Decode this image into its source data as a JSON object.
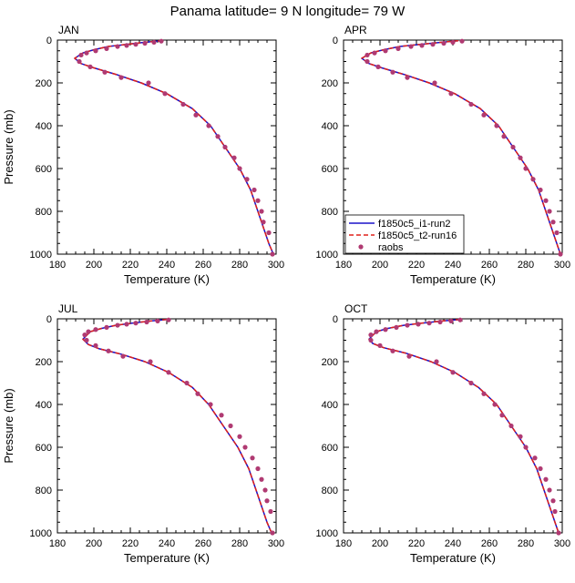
{
  "title": "Panama  latitude= 9 N longitude= 79 W",
  "chart_data": [
    {
      "type": "line",
      "panel_title": "JAN",
      "xlabel": "Temperature (K)",
      "ylabel": "Pressure (mb)",
      "xlim": [
        180,
        300
      ],
      "ylim": [
        1000,
        0
      ],
      "xticks": [
        "180",
        "200",
        "220",
        "240",
        "260",
        "280",
        "300"
      ],
      "yticks": [
        "0",
        "200",
        "400",
        "600",
        "800",
        "1000"
      ],
      "series": [
        {
          "name": "f1850c5_i1-run2",
          "color": "#1c12c8",
          "style": "solid",
          "x": [
            237.5,
            228,
            218,
            208,
            200,
            194,
            189.5,
            193,
            200,
            212,
            226,
            240,
            254,
            264,
            272,
            280,
            286,
            290,
            293,
            296,
            298.5
          ],
          "y": [
            3,
            10,
            20,
            30,
            45,
            60,
            85,
            110,
            130,
            160,
            200,
            250,
            320,
            400,
            500,
            600,
            700,
            800,
            875,
            950,
            1000
          ]
        },
        {
          "name": "f1850c5_t2-run16",
          "color": "#e0201a",
          "style": "dashed",
          "x": [
            237.5,
            228,
            218,
            208,
            200,
            194,
            189.5,
            193,
            200,
            212,
            226,
            240,
            254,
            264,
            272,
            280,
            286,
            290,
            293,
            296,
            298.5
          ],
          "y": [
            3,
            10,
            20,
            30,
            45,
            60,
            85,
            110,
            130,
            160,
            200,
            250,
            320,
            400,
            500,
            600,
            700,
            800,
            875,
            950,
            1000
          ]
        },
        {
          "name": "raobs",
          "color": "#b03a72",
          "style": "markers",
          "x": [
            237,
            233,
            228,
            223,
            218,
            213,
            207,
            201,
            196,
            193,
            192,
            198,
            206,
            215,
            230,
            239,
            249,
            256,
            263,
            268,
            272,
            277,
            280,
            284,
            288,
            290,
            292,
            293,
            296,
            298
          ],
          "y": [
            5,
            10,
            15,
            20,
            25,
            30,
            40,
            50,
            60,
            70,
            100,
            125,
            150,
            175,
            200,
            250,
            300,
            350,
            400,
            450,
            500,
            550,
            600,
            650,
            700,
            750,
            800,
            850,
            900,
            1000
          ]
        }
      ]
    },
    {
      "type": "line",
      "panel_title": "APR",
      "xlabel": "Temperature (K)",
      "ylabel": "",
      "xlim": [
        180,
        300
      ],
      "ylim": [
        1000,
        0
      ],
      "xticks": [
        "180",
        "200",
        "220",
        "240",
        "260",
        "280",
        "300"
      ],
      "yticks": [
        "0",
        "200",
        "400",
        "600",
        "800",
        "1000"
      ],
      "series": [
        {
          "name": "f1850c5_i1-run2",
          "color": "#1c12c8",
          "style": "solid",
          "x": [
            243,
            234,
            222,
            211,
            202,
            195,
            190,
            194,
            201,
            213,
            227,
            241,
            255,
            265,
            273,
            281,
            287,
            291,
            294,
            297,
            299
          ],
          "y": [
            3,
            10,
            20,
            30,
            45,
            60,
            85,
            110,
            130,
            160,
            200,
            250,
            320,
            400,
            500,
            600,
            700,
            800,
            875,
            950,
            1000
          ]
        },
        {
          "name": "f1850c5_t2-run16",
          "color": "#e0201a",
          "style": "dashed",
          "x": [
            243,
            234,
            222,
            211,
            202,
            195,
            190,
            194,
            201,
            213,
            227,
            241,
            255,
            265,
            273,
            281,
            287,
            291,
            294,
            297,
            299
          ],
          "y": [
            3,
            10,
            20,
            30,
            45,
            60,
            85,
            110,
            130,
            160,
            200,
            250,
            320,
            400,
            500,
            600,
            700,
            800,
            875,
            950,
            1000
          ]
        },
        {
          "name": "raobs",
          "color": "#b03a72",
          "style": "markers",
          "x": [
            245,
            240,
            235,
            229,
            223,
            217,
            210,
            203,
            197,
            193,
            193,
            199,
            207,
            215,
            230,
            239,
            250,
            257,
            264,
            268,
            273,
            277,
            280,
            284,
            288,
            291,
            293,
            295,
            297,
            299
          ],
          "y": [
            5,
            10,
            15,
            20,
            25,
            30,
            40,
            50,
            60,
            70,
            100,
            125,
            150,
            175,
            200,
            250,
            300,
            350,
            400,
            450,
            500,
            550,
            600,
            650,
            700,
            750,
            800,
            850,
            900,
            1000
          ]
        }
      ]
    },
    {
      "type": "line",
      "panel_title": "JUL",
      "xlabel": "Temperature (K)",
      "ylabel": "Pressure (mb)",
      "xlim": [
        180,
        300
      ],
      "ylim": [
        1000,
        0
      ],
      "xticks": [
        "180",
        "200",
        "220",
        "240",
        "260",
        "280",
        "300"
      ],
      "yticks": [
        "0",
        "200",
        "400",
        "600",
        "800",
        "1000"
      ],
      "series": [
        {
          "name": "f1850c5_i1-run2",
          "color": "#1c12c8",
          "style": "solid",
          "x": [
            240,
            231,
            221,
            212,
            204,
            198,
            194,
            197,
            203,
            215,
            228,
            241,
            254,
            263,
            271,
            279,
            285,
            289,
            292,
            295,
            297.5
          ],
          "y": [
            3,
            10,
            20,
            30,
            45,
            60,
            95,
            120,
            140,
            165,
            200,
            250,
            320,
            400,
            500,
            600,
            700,
            800,
            875,
            950,
            1000
          ]
        },
        {
          "name": "f1850c5_t2-run16",
          "color": "#e0201a",
          "style": "dashed",
          "x": [
            240,
            231,
            221,
            212,
            204,
            198,
            194,
            197,
            203,
            215,
            228,
            241,
            254,
            263,
            271,
            279,
            285,
            289,
            292,
            295,
            297.5
          ],
          "y": [
            3,
            10,
            20,
            30,
            45,
            60,
            95,
            120,
            140,
            165,
            200,
            250,
            320,
            400,
            500,
            600,
            700,
            800,
            875,
            950,
            1000
          ]
        },
        {
          "name": "raobs",
          "color": "#b03a72",
          "style": "markers",
          "x": [
            241,
            235,
            229,
            223,
            218,
            213,
            207,
            201,
            197,
            195,
            196,
            201,
            208,
            216,
            231,
            241,
            251,
            257,
            264,
            270,
            275,
            280,
            283,
            287,
            290,
            292,
            294,
            295,
            297,
            298
          ],
          "y": [
            5,
            10,
            15,
            20,
            25,
            30,
            40,
            50,
            60,
            75,
            100,
            125,
            150,
            175,
            200,
            250,
            300,
            350,
            400,
            450,
            500,
            550,
            600,
            650,
            700,
            750,
            800,
            850,
            900,
            1000
          ]
        }
      ]
    },
    {
      "type": "line",
      "panel_title": "OCT",
      "xlabel": "Temperature (K)",
      "ylabel": "",
      "xlim": [
        180,
        300
      ],
      "ylim": [
        1000,
        0
      ],
      "xticks": [
        "180",
        "200",
        "220",
        "240",
        "260",
        "280",
        "300"
      ],
      "yticks": [
        "0",
        "200",
        "400",
        "600",
        "800",
        "1000"
      ],
      "series": [
        {
          "name": "f1850c5_i1-run2",
          "color": "#1c12c8",
          "style": "solid",
          "x": [
            244,
            234,
            223,
            213,
            204,
            198,
            194,
            196,
            202,
            214,
            228,
            241,
            254,
            264,
            272,
            280,
            286,
            290,
            293,
            296,
            298
          ],
          "y": [
            3,
            10,
            20,
            30,
            45,
            60,
            95,
            115,
            135,
            160,
            200,
            250,
            320,
            400,
            500,
            600,
            700,
            800,
            875,
            950,
            1000
          ]
        },
        {
          "name": "f1850c5_t2-run16",
          "color": "#e0201a",
          "style": "dashed",
          "x": [
            244,
            234,
            223,
            213,
            204,
            198,
            194,
            196,
            202,
            214,
            228,
            241,
            254,
            264,
            272,
            280,
            286,
            290,
            293,
            296,
            298
          ],
          "y": [
            3,
            10,
            20,
            30,
            45,
            60,
            95,
            115,
            135,
            160,
            200,
            250,
            320,
            400,
            500,
            600,
            700,
            800,
            875,
            950,
            1000
          ]
        },
        {
          "name": "raobs",
          "color": "#b03a72",
          "style": "markers",
          "x": [
            244,
            239,
            233,
            227,
            221,
            215,
            209,
            203,
            198,
            195,
            195,
            200,
            207,
            216,
            231,
            240,
            250,
            257,
            263,
            267,
            272,
            277,
            280,
            285,
            288,
            291,
            293,
            295,
            296,
            298
          ],
          "y": [
            5,
            10,
            15,
            20,
            25,
            30,
            40,
            50,
            60,
            75,
            100,
            125,
            150,
            175,
            200,
            250,
            300,
            350,
            400,
            450,
            500,
            550,
            600,
            650,
            700,
            750,
            800,
            850,
            900,
            1000
          ]
        }
      ]
    }
  ],
  "legend": {
    "placement": "APR panel, bottom-left",
    "entries": [
      {
        "label": "f1850c5_i1-run2",
        "color": "#1c12c8",
        "style": "solid"
      },
      {
        "label": "f1850c5_t2-run16",
        "color": "#e0201a",
        "style": "dashed"
      },
      {
        "label": "raobs",
        "color": "#b03a72",
        "style": "markers"
      }
    ]
  }
}
